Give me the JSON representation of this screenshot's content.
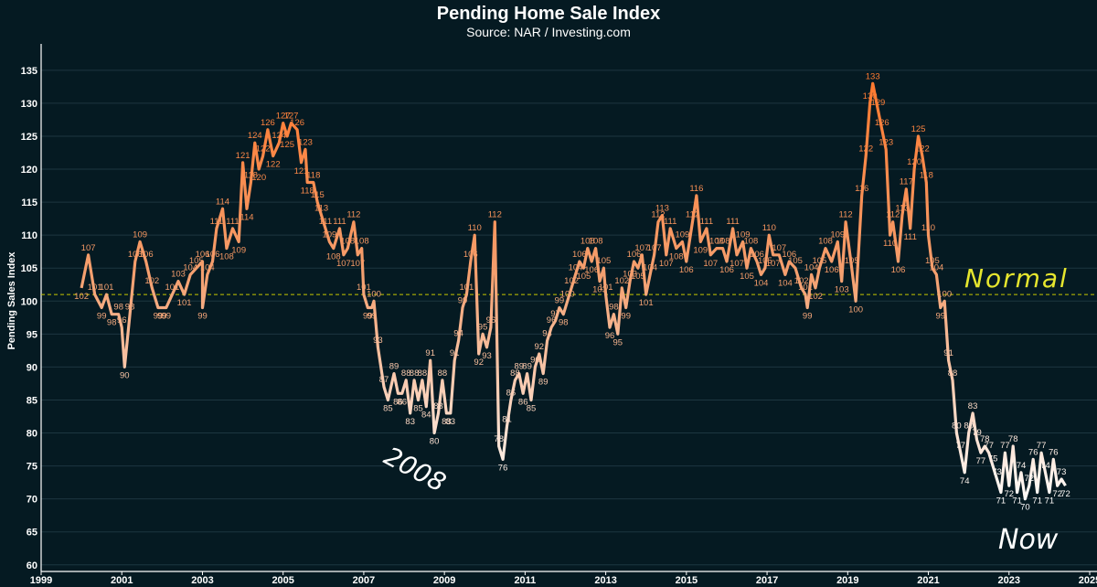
{
  "chart_data": {
    "type": "line",
    "title": "Pending Home Sale Index",
    "subtitle": "Source: NAR / Investing.com",
    "ylabel": "Pending Sales Index",
    "xlabel": "",
    "xlim": [
      1999,
      2025
    ],
    "ylim": [
      59,
      139
    ],
    "xticks": [
      "1999",
      "2001",
      "2003",
      "2005",
      "2007",
      "2009",
      "2011",
      "2013",
      "2015",
      "2017",
      "2019",
      "2021",
      "2023",
      "2025"
    ],
    "yticks": [
      "60",
      "65",
      "70",
      "75",
      "80",
      "85",
      "90",
      "95",
      "100",
      "105",
      "110",
      "115",
      "120",
      "125",
      "130",
      "135"
    ],
    "grid": "horizontal",
    "reference_line": {
      "label": "Normal",
      "value": 101
    },
    "annotations": [
      {
        "text": "2008",
        "x": 2008.1,
        "y": 75
      },
      {
        "text": "Now",
        "x": 2024.0,
        "y": 66
      }
    ],
    "series": [
      {
        "values": [
          [
            2000.0,
            102
          ],
          [
            2000.17,
            107
          ],
          [
            2000.33,
            101
          ],
          [
            2000.5,
            99
          ],
          [
            2000.62,
            101
          ],
          [
            2000.75,
            98
          ],
          [
            2000.92,
            98
          ],
          [
            2001.0,
            96
          ],
          [
            2001.07,
            90
          ],
          [
            2001.2,
            98
          ],
          [
            2001.33,
            106
          ],
          [
            2001.45,
            109
          ],
          [
            2001.6,
            106
          ],
          [
            2001.75,
            102
          ],
          [
            2001.9,
            99
          ],
          [
            2002.0,
            99
          ],
          [
            2002.1,
            99
          ],
          [
            2002.25,
            101
          ],
          [
            2002.4,
            103
          ],
          [
            2002.55,
            101
          ],
          [
            2002.7,
            104
          ],
          [
            2002.85,
            105
          ],
          [
            2003.0,
            106
          ],
          [
            2003.0,
            99
          ],
          [
            2003.12,
            104
          ],
          [
            2003.25,
            106
          ],
          [
            2003.35,
            111
          ],
          [
            2003.5,
            114
          ],
          [
            2003.6,
            108
          ],
          [
            2003.75,
            111
          ],
          [
            2003.9,
            109
          ],
          [
            2004.0,
            121
          ],
          [
            2004.1,
            114
          ],
          [
            2004.2,
            118
          ],
          [
            2004.3,
            124
          ],
          [
            2004.4,
            120
          ],
          [
            2004.5,
            122
          ],
          [
            2004.62,
            126
          ],
          [
            2004.75,
            122
          ],
          [
            2004.9,
            124
          ],
          [
            2005.0,
            127
          ],
          [
            2005.1,
            125
          ],
          [
            2005.2,
            127
          ],
          [
            2005.35,
            126
          ],
          [
            2005.45,
            121
          ],
          [
            2005.55,
            123
          ],
          [
            2005.6,
            118
          ],
          [
            2005.75,
            118
          ],
          [
            2005.85,
            115
          ],
          [
            2005.95,
            113
          ],
          [
            2006.05,
            111
          ],
          [
            2006.15,
            109
          ],
          [
            2006.25,
            108
          ],
          [
            2006.4,
            111
          ],
          [
            2006.5,
            107
          ],
          [
            2006.6,
            108
          ],
          [
            2006.75,
            112
          ],
          [
            2006.85,
            107
          ],
          [
            2006.95,
            108
          ],
          [
            2007.0,
            101
          ],
          [
            2007.1,
            99
          ],
          [
            2007.2,
            99
          ],
          [
            2007.25,
            100
          ],
          [
            2007.35,
            93
          ],
          [
            2007.5,
            87
          ],
          [
            2007.6,
            85
          ],
          [
            2007.75,
            89
          ],
          [
            2007.85,
            86
          ],
          [
            2007.95,
            86
          ],
          [
            2008.05,
            88
          ],
          [
            2008.15,
            83
          ],
          [
            2008.25,
            88
          ],
          [
            2008.35,
            85
          ],
          [
            2008.45,
            88
          ],
          [
            2008.55,
            84
          ],
          [
            2008.65,
            91
          ],
          [
            2008.75,
            80
          ],
          [
            2008.85,
            83
          ],
          [
            2008.95,
            88
          ],
          [
            2009.05,
            83
          ],
          [
            2009.15,
            83
          ],
          [
            2009.25,
            91
          ],
          [
            2009.35,
            94
          ],
          [
            2009.45,
            99
          ],
          [
            2009.55,
            101
          ],
          [
            2009.65,
            106
          ],
          [
            2009.75,
            110
          ],
          [
            2009.85,
            92
          ],
          [
            2009.95,
            95
          ],
          [
            2010.05,
            93
          ],
          [
            2010.15,
            96
          ],
          [
            2010.25,
            112
          ],
          [
            2010.35,
            78
          ],
          [
            2010.45,
            76
          ],
          [
            2010.55,
            81
          ],
          [
            2010.65,
            85
          ],
          [
            2010.75,
            88
          ],
          [
            2010.85,
            89
          ],
          [
            2010.95,
            86
          ],
          [
            2011.05,
            89
          ],
          [
            2011.15,
            85
          ],
          [
            2011.25,
            90
          ],
          [
            2011.35,
            92
          ],
          [
            2011.45,
            89
          ],
          [
            2011.55,
            94
          ],
          [
            2011.65,
            96
          ],
          [
            2011.75,
            97
          ],
          [
            2011.85,
            99
          ],
          [
            2011.95,
            98
          ],
          [
            2012.05,
            100
          ],
          [
            2012.15,
            102
          ],
          [
            2012.25,
            104
          ],
          [
            2012.35,
            106
          ],
          [
            2012.45,
            105
          ],
          [
            2012.55,
            108
          ],
          [
            2012.65,
            106
          ],
          [
            2012.75,
            108
          ],
          [
            2012.85,
            103
          ],
          [
            2012.95,
            105
          ],
          [
            2013.0,
            101
          ],
          [
            2013.1,
            96
          ],
          [
            2013.2,
            98
          ],
          [
            2013.3,
            95
          ],
          [
            2013.4,
            102
          ],
          [
            2013.5,
            99
          ],
          [
            2013.6,
            103
          ],
          [
            2013.7,
            106
          ],
          [
            2013.8,
            105
          ],
          [
            2013.9,
            107
          ],
          [
            2014.0,
            101
          ],
          [
            2014.1,
            104
          ],
          [
            2014.2,
            107
          ],
          [
            2014.3,
            112
          ],
          [
            2014.4,
            113
          ],
          [
            2014.5,
            107
          ],
          [
            2014.6,
            111
          ],
          [
            2014.75,
            108
          ],
          [
            2014.9,
            109
          ],
          [
            2015.0,
            106
          ],
          [
            2015.15,
            112
          ],
          [
            2015.25,
            116
          ],
          [
            2015.35,
            109
          ],
          [
            2015.5,
            111
          ],
          [
            2015.6,
            107
          ],
          [
            2015.75,
            108
          ],
          [
            2015.9,
            108
          ],
          [
            2016.0,
            106
          ],
          [
            2016.15,
            111
          ],
          [
            2016.25,
            107
          ],
          [
            2016.4,
            109
          ],
          [
            2016.5,
            105
          ],
          [
            2016.6,
            108
          ],
          [
            2016.75,
            106
          ],
          [
            2016.85,
            104
          ],
          [
            2016.95,
            105
          ],
          [
            2017.05,
            110
          ],
          [
            2017.15,
            107
          ],
          [
            2017.3,
            107
          ],
          [
            2017.45,
            104
          ],
          [
            2017.55,
            106
          ],
          [
            2017.7,
            105
          ],
          [
            2017.85,
            102
          ],
          [
            2017.95,
            101
          ],
          [
            2018.0,
            99
          ],
          [
            2018.1,
            104
          ],
          [
            2018.2,
            102
          ],
          [
            2018.3,
            105
          ],
          [
            2018.45,
            108
          ],
          [
            2018.6,
            106
          ],
          [
            2018.75,
            109
          ],
          [
            2018.85,
            103
          ],
          [
            2018.95,
            112
          ],
          [
            2019.1,
            105
          ],
          [
            2019.2,
            100
          ],
          [
            2019.35,
            116
          ],
          [
            2019.45,
            122
          ],
          [
            2019.55,
            130
          ],
          [
            2019.62,
            133
          ],
          [
            2019.75,
            129
          ],
          [
            2019.85,
            126
          ],
          [
            2019.95,
            123
          ],
          [
            2020.05,
            110
          ],
          [
            2020.12,
            112
          ],
          [
            2020.25,
            106
          ],
          [
            2020.35,
            113
          ],
          [
            2020.45,
            117
          ],
          [
            2020.55,
            111
          ],
          [
            2020.65,
            120
          ],
          [
            2020.75,
            125
          ],
          [
            2020.85,
            122
          ],
          [
            2020.95,
            118
          ],
          [
            2021.0,
            110
          ],
          [
            2021.1,
            105
          ],
          [
            2021.2,
            104
          ],
          [
            2021.3,
            99
          ],
          [
            2021.4,
            100
          ],
          [
            2021.5,
            91
          ],
          [
            2021.6,
            88
          ],
          [
            2021.7,
            80
          ],
          [
            2021.8,
            77
          ],
          [
            2021.9,
            74
          ],
          [
            2022.0,
            80
          ],
          [
            2022.1,
            83
          ],
          [
            2022.2,
            79
          ],
          [
            2022.3,
            77
          ],
          [
            2022.4,
            78
          ],
          [
            2022.5,
            77
          ],
          [
            2022.6,
            75
          ],
          [
            2022.7,
            73
          ],
          [
            2022.8,
            71
          ],
          [
            2022.9,
            77
          ],
          [
            2023.0,
            72
          ],
          [
            2023.1,
            78
          ],
          [
            2023.2,
            71
          ],
          [
            2023.3,
            74
          ],
          [
            2023.4,
            70
          ],
          [
            2023.5,
            72
          ],
          [
            2023.6,
            76
          ],
          [
            2023.7,
            71
          ],
          [
            2023.8,
            77
          ],
          [
            2023.9,
            74
          ],
          [
            2024.0,
            71
          ],
          [
            2024.1,
            76
          ],
          [
            2024.2,
            72
          ],
          [
            2024.3,
            73
          ],
          [
            2024.4,
            72
          ]
        ]
      }
    ]
  }
}
